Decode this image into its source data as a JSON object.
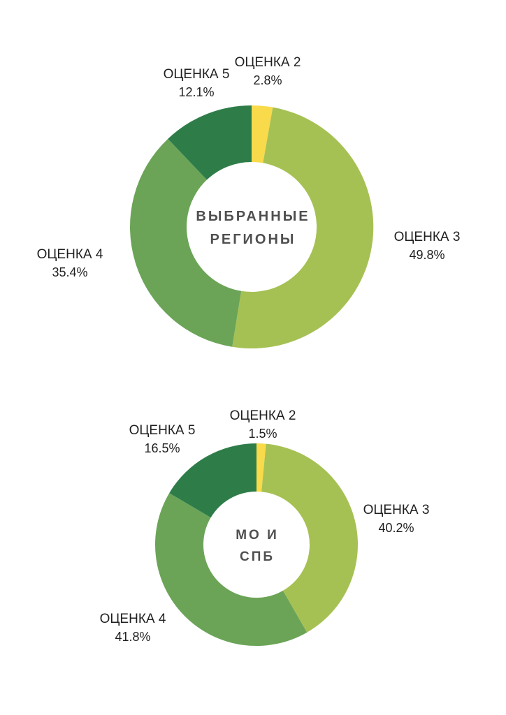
{
  "page": {
    "background_color": "#ffffff",
    "text_color": "#1f1f1f",
    "center_text_color": "#4f4f4f"
  },
  "chart_data": [
    {
      "type": "pie",
      "subtype": "donut",
      "title": "ВЫБРАННЫЕ РЕГИОНЫ",
      "center_label_lines": [
        "ВЫБРАННЫЕ",
        "РЕГИОНЫ"
      ],
      "start_angle_deg": 0,
      "direction": "clockwise",
      "legend": "none",
      "labels": "outside",
      "slices": [
        {
          "label": "ОЦЕНКА 2",
          "value": 2.8,
          "pct_label": "2.8%",
          "color": "#f8da4b"
        },
        {
          "label": "ОЦЕНКА 3",
          "value": 49.8,
          "pct_label": "49.8%",
          "color": "#a6c153"
        },
        {
          "label": "ОЦЕНКА 4",
          "value": 35.4,
          "pct_label": "35.4%",
          "color": "#6ba457"
        },
        {
          "label": "ОЦЕНКА 5",
          "value": 12.1,
          "pct_label": "12.1%",
          "color": "#2e7d49"
        }
      ]
    },
    {
      "type": "pie",
      "subtype": "donut",
      "title": "МО И СПБ",
      "center_label_lines": [
        "МО И",
        "СПБ"
      ],
      "start_angle_deg": 0,
      "direction": "clockwise",
      "legend": "none",
      "labels": "outside",
      "slices": [
        {
          "label": "ОЦЕНКА 2",
          "value": 1.5,
          "pct_label": "1.5%",
          "color": "#f8da4b"
        },
        {
          "label": "ОЦЕНКА 3",
          "value": 40.2,
          "pct_label": "40.2%",
          "color": "#a6c153"
        },
        {
          "label": "ОЦЕНКА 4",
          "value": 41.8,
          "pct_label": "41.8%",
          "color": "#6ba457"
        },
        {
          "label": "ОЦЕНКА 5",
          "value": 16.5,
          "pct_label": "16.5%",
          "color": "#2e7d49"
        }
      ]
    }
  ]
}
